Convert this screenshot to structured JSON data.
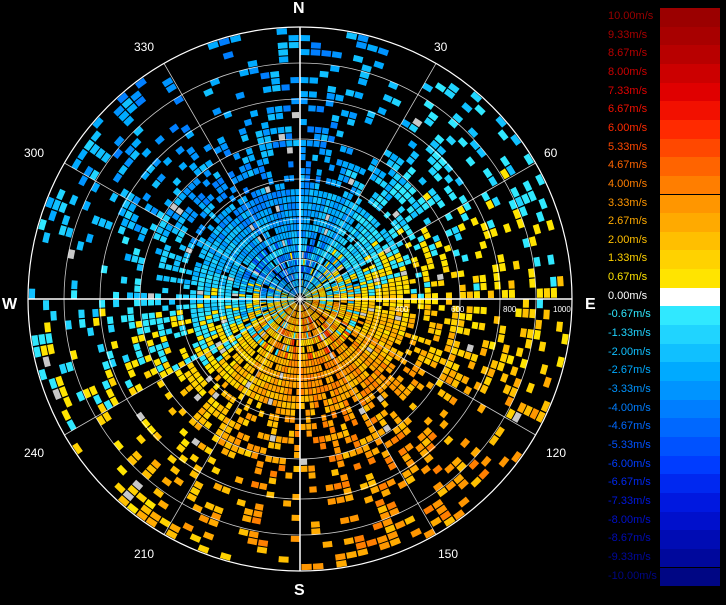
{
  "compass": {
    "north": "N",
    "east": "E",
    "south": "S",
    "west": "W"
  },
  "angle_labels": [
    "30",
    "60",
    "120",
    "150",
    "210",
    "240",
    "300",
    "330"
  ],
  "range_labels": [
    "400",
    "600",
    "800",
    "1000"
  ],
  "legend": {
    "items": [
      {
        "label": "10.00m/s",
        "color": "#9b0000"
      },
      {
        "label": "9.33m/s",
        "color": "#a80000"
      },
      {
        "label": "8.67m/s",
        "color": "#b80000"
      },
      {
        "label": "8.00m/s",
        "color": "#cc0000"
      },
      {
        "label": "7.33m/s",
        "color": "#e00000"
      },
      {
        "label": "6.67m/s",
        "color": "#f21000"
      },
      {
        "label": "6.00m/s",
        "color": "#ff2a00"
      },
      {
        "label": "5.33m/s",
        "color": "#ff4800"
      },
      {
        "label": "4.67m/s",
        "color": "#ff6400"
      },
      {
        "label": "4.00m/s",
        "color": "#ff7e00"
      },
      {
        "label": "3.33m/s",
        "color": "#ff9600"
      },
      {
        "label": "2.67m/s",
        "color": "#ffaa00"
      },
      {
        "label": "2.00m/s",
        "color": "#ffbf00"
      },
      {
        "label": "1.33m/s",
        "color": "#ffd200"
      },
      {
        "label": "0.67m/s",
        "color": "#ffe400"
      },
      {
        "label": "0.00m/s",
        "color": "#ffffff"
      },
      {
        "label": "-0.67m/s",
        "color": "#30e8ff"
      },
      {
        "label": "-1.33m/s",
        "color": "#20d4ff"
      },
      {
        "label": "-2.00m/s",
        "color": "#10c0ff"
      },
      {
        "label": "-2.67m/s",
        "color": "#00aaff"
      },
      {
        "label": "-3.33m/s",
        "color": "#0094ff"
      },
      {
        "label": "-4.00m/s",
        "color": "#007eff"
      },
      {
        "label": "-4.67m/s",
        "color": "#0068ff"
      },
      {
        "label": "-5.33m/s",
        "color": "#0052ff"
      },
      {
        "label": "-6.00m/s",
        "color": "#003cff"
      },
      {
        "label": "-6.67m/s",
        "color": "#0028f0"
      },
      {
        "label": "-7.33m/s",
        "color": "#0018e0"
      },
      {
        "label": "-8.00m/s",
        "color": "#0010cc"
      },
      {
        "label": "-8.67m/s",
        "color": "#000cb4"
      },
      {
        "label": "-9.33m/s",
        "color": "#00089c"
      },
      {
        "label": "-10.00m/s",
        "color": "#000684"
      }
    ]
  }
}
